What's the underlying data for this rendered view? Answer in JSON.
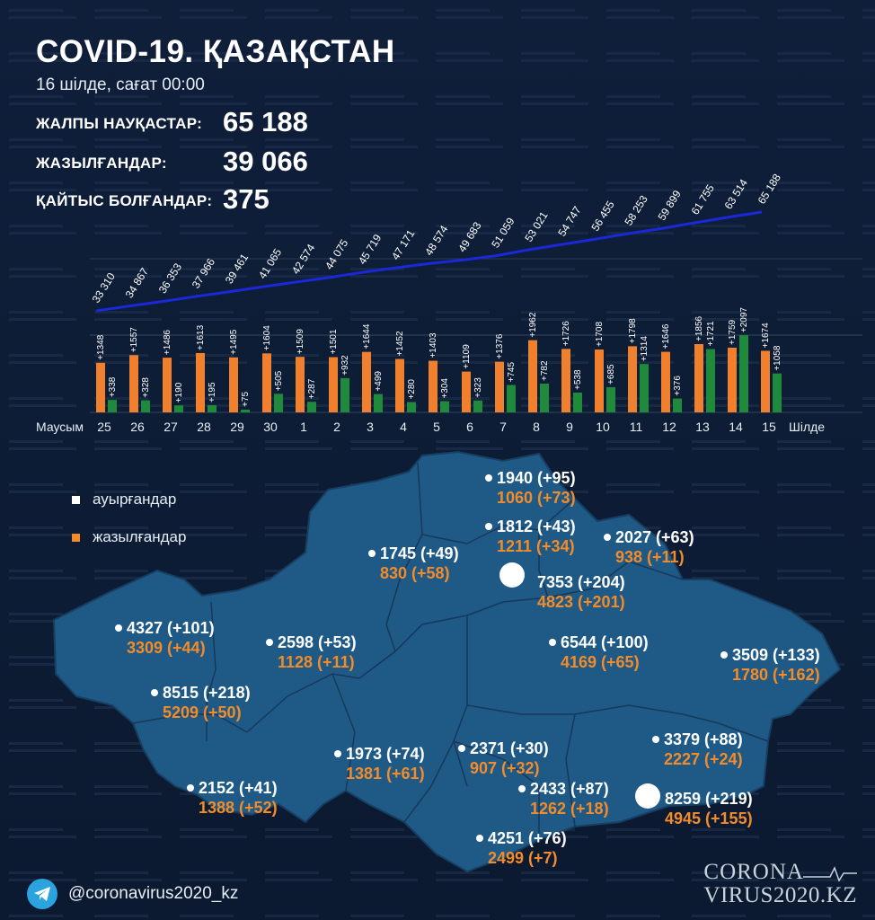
{
  "header": {
    "title": "COVID-19. ҚАЗАҚСТАН",
    "date": "16 шілде, сағат 00:00"
  },
  "stats": [
    {
      "label": "ЖАЛПЫ НАУҚАСТАР:",
      "value": "65 188"
    },
    {
      "label": "ЖАЗЫЛҒАНДАР:",
      "value": "39 066"
    },
    {
      "label": "ҚАЙТЫС БОЛҒАНДАР:",
      "value": "375"
    }
  ],
  "chart_data": {
    "type": "bar",
    "month_start_label": "Маусым",
    "month_end_label": "Шілде",
    "categories": [
      "25",
      "26",
      "27",
      "28",
      "29",
      "30",
      "1",
      "2",
      "3",
      "4",
      "5",
      "6",
      "7",
      "8",
      "9",
      "10",
      "11",
      "12",
      "13",
      "14",
      "15"
    ],
    "series": [
      {
        "values": [
          1348,
          1557,
          1486,
          1613,
          1495,
          1604,
          1509,
          1501,
          1644,
          1452,
          1403,
          1109,
          1376,
          1962,
          1726,
          1708,
          1798,
          1646,
          1856,
          1759,
          1674
        ],
        "labels": [
          "+1348",
          "+1557",
          "+1486",
          "+1613",
          "+1495",
          "+1604",
          "+1509",
          "+1501",
          "+1644",
          "+1452",
          "+1403",
          "+1109",
          "+1376",
          "+1962",
          "+1726",
          "+1708",
          "+1798",
          "+1646",
          "+1856",
          "+1759",
          "+1674"
        ],
        "color": "#f07f2e"
      },
      {
        "values": [
          338,
          328,
          190,
          195,
          75,
          505,
          287,
          932,
          499,
          280,
          304,
          323,
          745,
          782,
          538,
          685,
          1314,
          376,
          1721,
          2097,
          1058
        ],
        "labels": [
          "+338",
          "+328",
          "+190",
          "+195",
          "+75",
          "+505",
          "+287",
          "+932",
          "+499",
          "+280",
          "+304",
          "+323",
          "+745",
          "+782",
          "+538",
          "+685",
          "+1314",
          "+376",
          "+1721",
          "+2097",
          "+1058"
        ],
        "color": "#1f8a3c"
      }
    ],
    "cumulative": {
      "values": [
        33310,
        34867,
        36353,
        37966,
        39461,
        41065,
        42574,
        44075,
        45719,
        47171,
        48574,
        49683,
        51059,
        53021,
        54747,
        56455,
        58253,
        59899,
        61755,
        63514,
        65188
      ],
      "labels": [
        "33 310",
        "34 867",
        "36 353",
        "37 966",
        "39 461",
        "41 065",
        "42 574",
        "44 075",
        "45 719",
        "47 171",
        "48 574",
        "49 683",
        "51 059",
        "53 021",
        "54 747",
        "56 455",
        "58 253",
        "59 899",
        "61 755",
        "63 514",
        "65 188"
      ],
      "color": "#1a28d8"
    },
    "ylim": [
      0,
      2100
    ]
  },
  "legend": {
    "sick_label": "ауырғандар",
    "recovered_label": "жазылғандар",
    "sick_color": "#ffffff",
    "recovered_color": "#f28c2b"
  },
  "regions": [
    {
      "sick": "1940 (+95)",
      "recovered": "1060 (+73)"
    },
    {
      "sick": "1812 (+43)",
      "recovered": "1211 (+34)"
    },
    {
      "sick": "2027 (+63)",
      "recovered": "938 (+11)"
    },
    {
      "sick": "1745 (+49)",
      "recovered": "830 (+58)"
    },
    {
      "sick": "7353 (+204)",
      "recovered": "4823 (+201)"
    },
    {
      "sick": "4327 (+101)",
      "recovered": "3309 (+44)"
    },
    {
      "sick": "2598 (+53)",
      "recovered": "1128 (+11)"
    },
    {
      "sick": "6544 (+100)",
      "recovered": "4169 (+65)"
    },
    {
      "sick": "3509 (+133)",
      "recovered": "1780 (+162)"
    },
    {
      "sick": "8515 (+218)",
      "recovered": "5209 (+50)"
    },
    {
      "sick": "3379 (+88)",
      "recovered": "2227 (+24)"
    },
    {
      "sick": "1973 (+74)",
      "recovered": "1381 (+61)"
    },
    {
      "sick": "2371 (+30)",
      "recovered": "907 (+32)"
    },
    {
      "sick": "2152 (+41)",
      "recovered": "1388 (+52)"
    },
    {
      "sick": "2433 (+87)",
      "recovered": "1262 (+18)"
    },
    {
      "sick": "8259 (+219)",
      "recovered": "4945 (+155)"
    },
    {
      "sick": "4251 (+76)",
      "recovered": "2499 (+7)"
    }
  ],
  "footer": {
    "handle": "@coronavirus2020_kz",
    "brand_line1": "CORONA",
    "brand_line2": "VIRUS2020.KZ",
    "telegram_icon": "paper-plane-icon"
  }
}
